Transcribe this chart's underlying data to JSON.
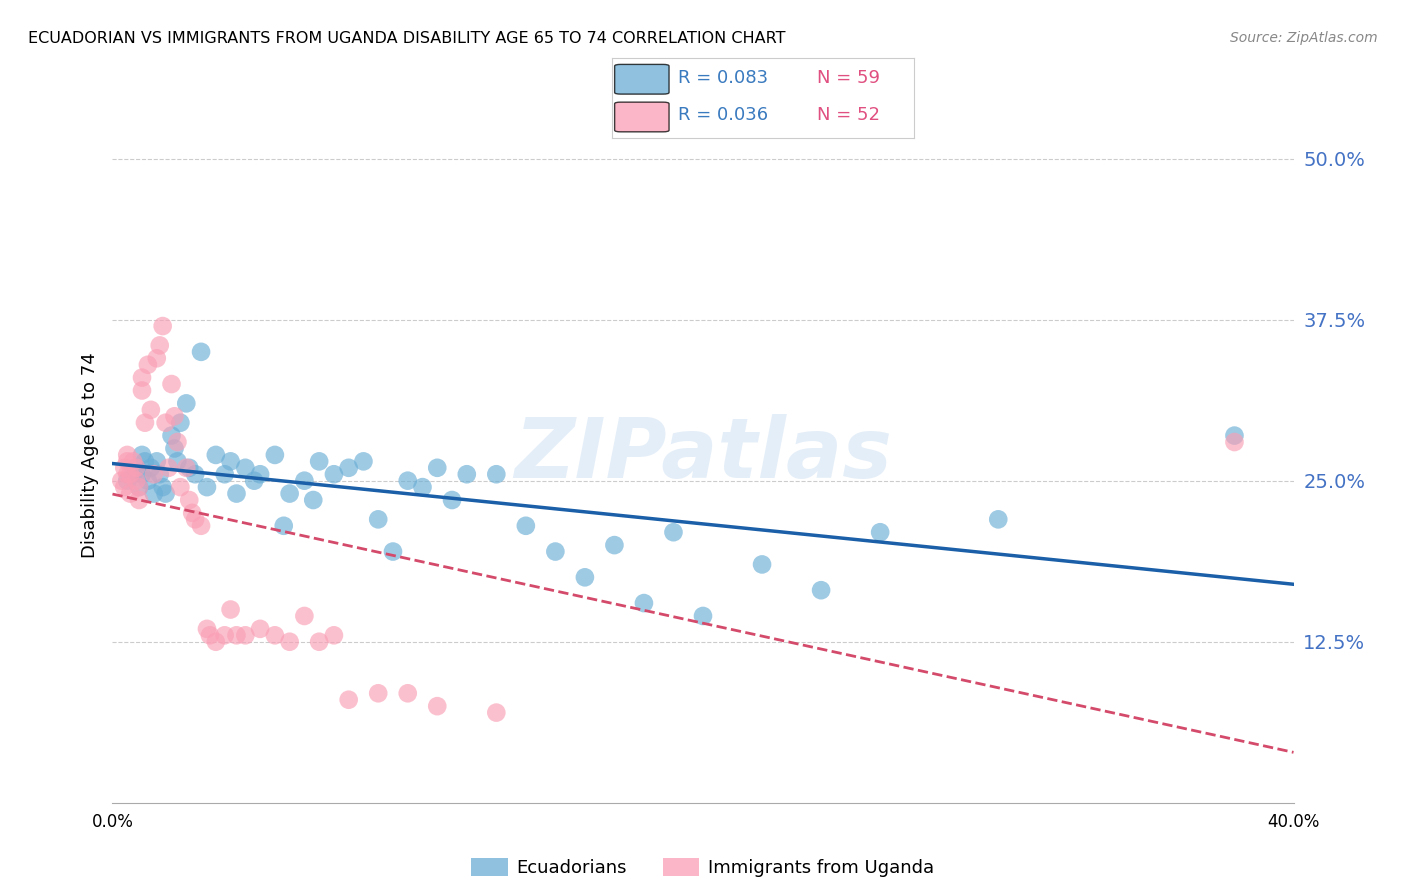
{
  "title": "ECUADORIAN VS IMMIGRANTS FROM UGANDA DISABILITY AGE 65 TO 74 CORRELATION CHART",
  "source": "Source: ZipAtlas.com",
  "ylabel": "Disability Age 65 to 74",
  "ytick_labels": [
    "50.0%",
    "37.5%",
    "25.0%",
    "12.5%"
  ],
  "ytick_values": [
    0.5,
    0.375,
    0.25,
    0.125
  ],
  "xlim": [
    0.0,
    0.4
  ],
  "ylim": [
    0.0,
    0.54
  ],
  "watermark": "ZIPatlas",
  "color_blue": "#6baed6",
  "color_pink": "#fa9fb5",
  "line_blue": "#1a5fa8",
  "line_pink": "#d44a6a",
  "ecuadorians_x": [
    0.005,
    0.007,
    0.008,
    0.009,
    0.01,
    0.01,
    0.011,
    0.012,
    0.013,
    0.014,
    0.015,
    0.016,
    0.017,
    0.018,
    0.02,
    0.021,
    0.022,
    0.023,
    0.025,
    0.026,
    0.028,
    0.03,
    0.032,
    0.035,
    0.038,
    0.04,
    0.042,
    0.045,
    0.048,
    0.05,
    0.055,
    0.058,
    0.06,
    0.065,
    0.068,
    0.07,
    0.075,
    0.08,
    0.085,
    0.09,
    0.095,
    0.1,
    0.105,
    0.11,
    0.115,
    0.12,
    0.13,
    0.14,
    0.15,
    0.16,
    0.17,
    0.18,
    0.19,
    0.2,
    0.22,
    0.24,
    0.26,
    0.3,
    0.38
  ],
  "ecuadorians_y": [
    0.25,
    0.255,
    0.26,
    0.245,
    0.27,
    0.255,
    0.265,
    0.25,
    0.26,
    0.24,
    0.265,
    0.255,
    0.245,
    0.24,
    0.285,
    0.275,
    0.265,
    0.295,
    0.31,
    0.26,
    0.255,
    0.35,
    0.245,
    0.27,
    0.255,
    0.265,
    0.24,
    0.26,
    0.25,
    0.255,
    0.27,
    0.215,
    0.24,
    0.25,
    0.235,
    0.265,
    0.255,
    0.26,
    0.265,
    0.22,
    0.195,
    0.25,
    0.245,
    0.26,
    0.235,
    0.255,
    0.255,
    0.215,
    0.195,
    0.175,
    0.2,
    0.155,
    0.21,
    0.145,
    0.185,
    0.165,
    0.21,
    0.22,
    0.285
  ],
  "uganda_x": [
    0.003,
    0.004,
    0.004,
    0.005,
    0.005,
    0.005,
    0.006,
    0.006,
    0.007,
    0.008,
    0.008,
    0.009,
    0.009,
    0.01,
    0.01,
    0.011,
    0.012,
    0.013,
    0.014,
    0.015,
    0.016,
    0.017,
    0.018,
    0.019,
    0.02,
    0.021,
    0.022,
    0.023,
    0.025,
    0.026,
    0.027,
    0.028,
    0.03,
    0.032,
    0.033,
    0.035,
    0.038,
    0.04,
    0.042,
    0.045,
    0.05,
    0.055,
    0.06,
    0.065,
    0.07,
    0.075,
    0.08,
    0.09,
    0.1,
    0.11,
    0.13,
    0.38
  ],
  "uganda_y": [
    0.25,
    0.26,
    0.245,
    0.265,
    0.255,
    0.27,
    0.255,
    0.24,
    0.265,
    0.26,
    0.25,
    0.245,
    0.235,
    0.33,
    0.32,
    0.295,
    0.34,
    0.305,
    0.255,
    0.345,
    0.355,
    0.37,
    0.295,
    0.26,
    0.325,
    0.3,
    0.28,
    0.245,
    0.26,
    0.235,
    0.225,
    0.22,
    0.215,
    0.135,
    0.13,
    0.125,
    0.13,
    0.15,
    0.13,
    0.13,
    0.135,
    0.13,
    0.125,
    0.145,
    0.125,
    0.13,
    0.08,
    0.085,
    0.085,
    0.075,
    0.07,
    0.28
  ]
}
